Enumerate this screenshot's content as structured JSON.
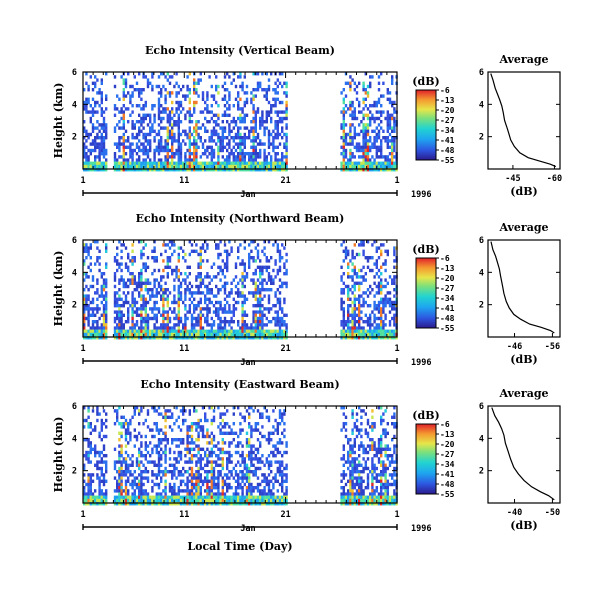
{
  "chart_data": [
    {
      "type": "heatmap",
      "title": "Echo Intensity (Vertical Beam)",
      "ylabel": "Height (km)",
      "y_ticks": [
        "6",
        "4",
        "2"
      ],
      "ylim": [
        0,
        6
      ],
      "x_ticks": [
        "1",
        "11",
        "21",
        "1"
      ],
      "xlim_day": [
        1,
        32
      ],
      "month_label": "Jan",
      "year_label": "1996",
      "gap_days": [
        21.0,
        26.2
      ],
      "colorbar": {
        "unit": "(dB)",
        "ticks": [
          "-6",
          "-13",
          "-20",
          "-27",
          "-34",
          "-41",
          "-48",
          "-55"
        ],
        "range": [
          -55,
          -6
        ]
      },
      "average_profile": {
        "title": "Average",
        "xlabel": "(dB)",
        "x_ticks": [
          "-45",
          "-60"
        ],
        "xlim": [
          -36,
          -62
        ],
        "y_ticks": [
          "6",
          "4",
          "2"
        ],
        "points": [
          [
            -37.0,
            5.9
          ],
          [
            -37.8,
            5.5
          ],
          [
            -38.6,
            5.0
          ],
          [
            -39.5,
            4.6
          ],
          [
            -40.2,
            4.3
          ],
          [
            -41.0,
            3.9
          ],
          [
            -41.5,
            3.5
          ],
          [
            -42.0,
            3.0
          ],
          [
            -42.8,
            2.6
          ],
          [
            -43.5,
            2.2
          ],
          [
            -44.2,
            1.8
          ],
          [
            -45.5,
            1.4
          ],
          [
            -47.5,
            1.0
          ],
          [
            -50.5,
            0.7
          ],
          [
            -54.5,
            0.5
          ],
          [
            -58.5,
            0.3
          ],
          [
            -60.5,
            0.15
          ]
        ]
      }
    },
    {
      "type": "heatmap",
      "title": "Echo Intensity (Northward Beam)",
      "ylabel": "Height (km)",
      "y_ticks": [
        "6",
        "4",
        "2"
      ],
      "ylim": [
        0,
        6
      ],
      "x_ticks": [
        "1",
        "11",
        "21",
        "1"
      ],
      "xlim_day": [
        1,
        32
      ],
      "month_label": "Jan",
      "year_label": "1996",
      "gap_days": [
        21.0,
        26.2
      ],
      "colorbar": {
        "unit": "(dB)",
        "ticks": [
          "-6",
          "-13",
          "-20",
          "-27",
          "-34",
          "-41",
          "-48",
          "-55"
        ],
        "range": [
          -55,
          -6
        ]
      },
      "average_profile": {
        "title": "Average",
        "xlabel": "(dB)",
        "x_ticks": [
          "-46",
          "-56"
        ],
        "xlim": [
          -39,
          -58
        ],
        "y_ticks": [
          "6",
          "4",
          "2"
        ],
        "points": [
          [
            -39.8,
            5.9
          ],
          [
            -40.3,
            5.4
          ],
          [
            -41.0,
            5.0
          ],
          [
            -41.5,
            4.6
          ],
          [
            -42.0,
            4.2
          ],
          [
            -42.3,
            3.8
          ],
          [
            -42.8,
            3.2
          ],
          [
            -43.2,
            2.7
          ],
          [
            -43.8,
            2.2
          ],
          [
            -44.6,
            1.8
          ],
          [
            -45.8,
            1.4
          ],
          [
            -47.6,
            1.1
          ],
          [
            -50.0,
            0.8
          ],
          [
            -53.0,
            0.6
          ],
          [
            -55.5,
            0.4
          ],
          [
            -56.5,
            0.25
          ]
        ]
      }
    },
    {
      "type": "heatmap",
      "title": "Echo Intensity (Eastward Beam)",
      "ylabel": "Height (km)",
      "xlabel": "Local Time (Day)",
      "y_ticks": [
        "6",
        "4",
        "2"
      ],
      "ylim": [
        0,
        6
      ],
      "x_ticks": [
        "1",
        "11",
        "21",
        "1"
      ],
      "xlim_day": [
        1,
        32
      ],
      "month_label": "Jan",
      "year_label": "1996",
      "gap_days": [
        21.0,
        26.2
      ],
      "colorbar": {
        "unit": "(dB)",
        "ticks": [
          "-6",
          "-13",
          "-20",
          "-27",
          "-34",
          "-41",
          "-48",
          "-55"
        ],
        "range": [
          -55,
          -6
        ]
      },
      "average_profile": {
        "title": "Average",
        "xlabel": "(dB)",
        "x_ticks": [
          "-40",
          "-50"
        ],
        "xlim": [
          -33,
          -52
        ],
        "y_ticks": [
          "6",
          "4",
          "2"
        ],
        "points": [
          [
            -34.0,
            5.9
          ],
          [
            -34.8,
            5.4
          ],
          [
            -35.8,
            5.0
          ],
          [
            -36.6,
            4.6
          ],
          [
            -37.2,
            4.2
          ],
          [
            -37.6,
            3.7
          ],
          [
            -38.3,
            3.2
          ],
          [
            -39.0,
            2.7
          ],
          [
            -39.8,
            2.2
          ],
          [
            -41.0,
            1.8
          ],
          [
            -42.5,
            1.4
          ],
          [
            -44.5,
            1.0
          ],
          [
            -46.8,
            0.7
          ],
          [
            -49.0,
            0.45
          ],
          [
            -50.5,
            0.2
          ]
        ]
      }
    }
  ]
}
